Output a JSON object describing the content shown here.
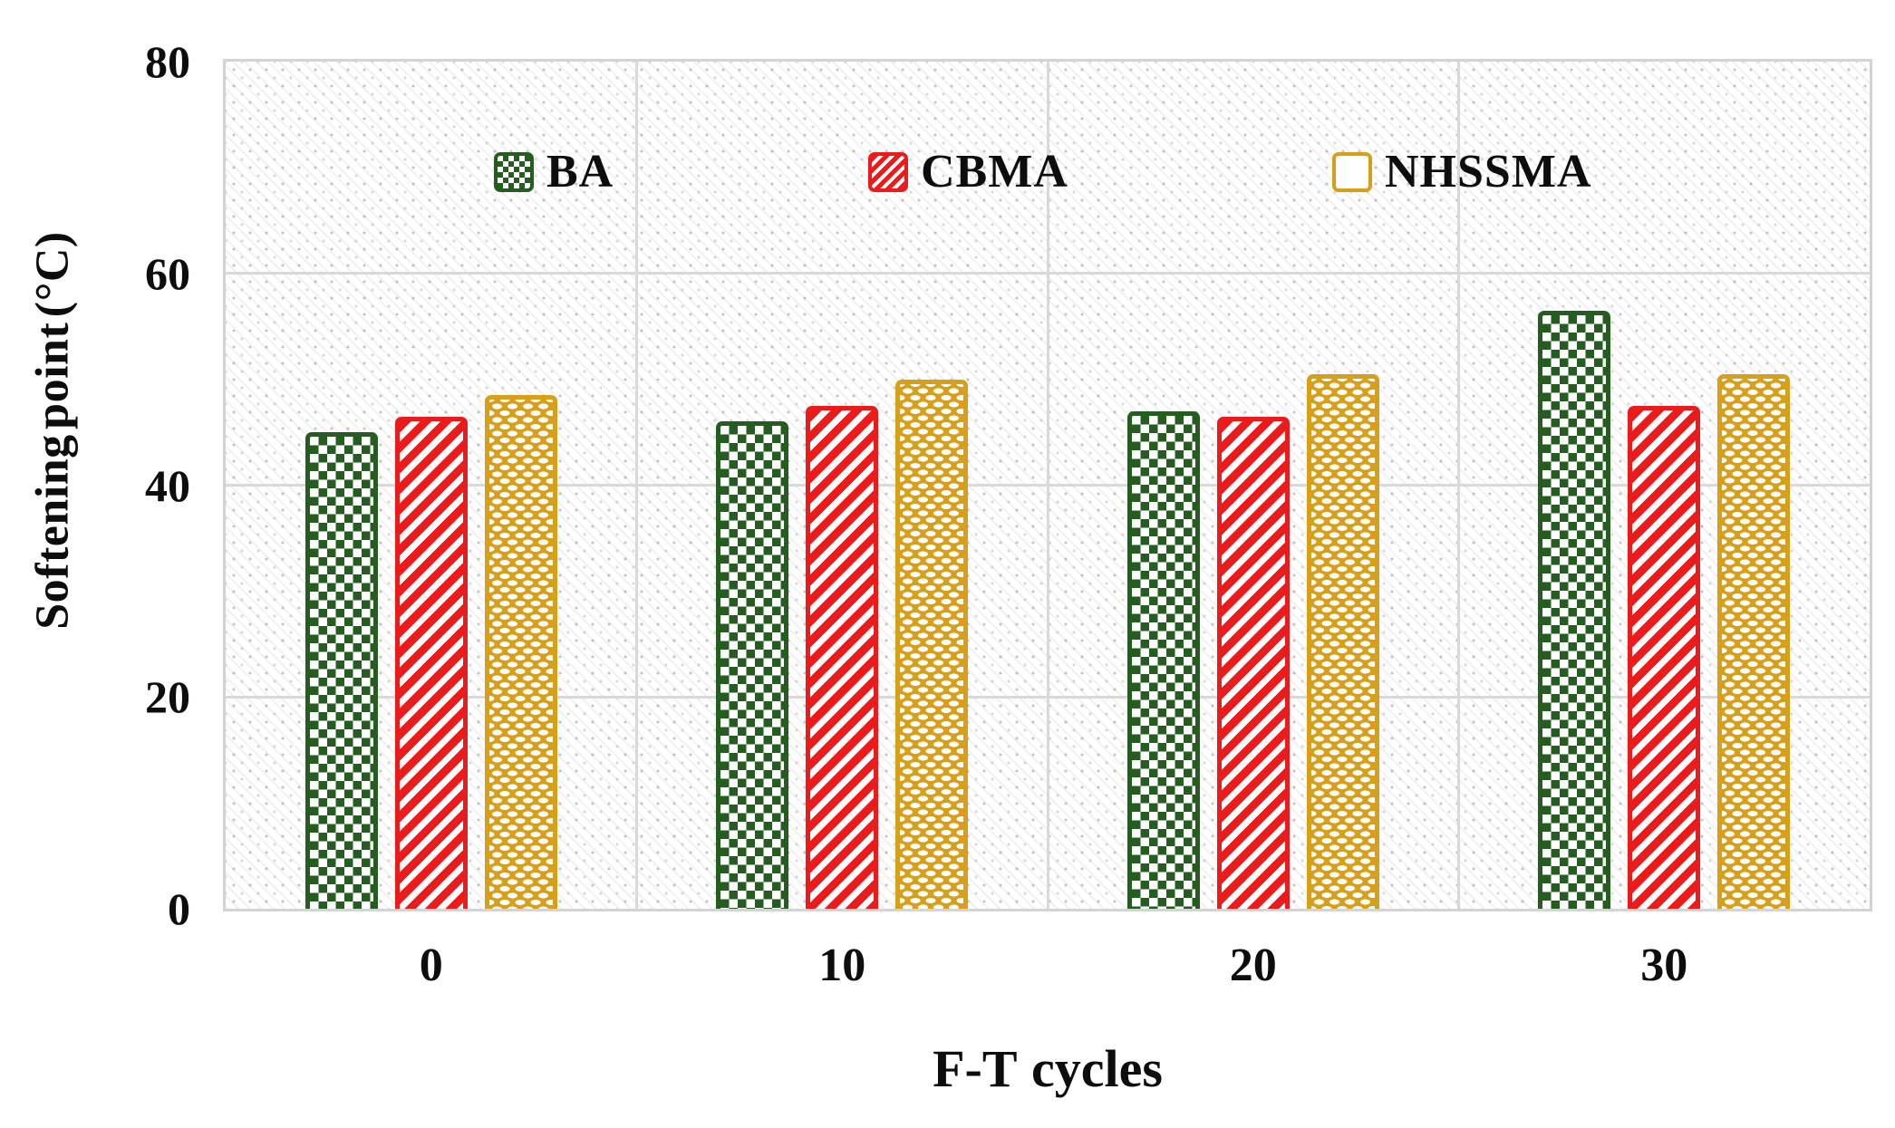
{
  "chart_data": {
    "type": "bar",
    "title": "",
    "xlabel": "F-T cycles",
    "ylabel": "Softening point (°C)",
    "categories": [
      "0",
      "10",
      "20",
      "30"
    ],
    "series": [
      {
        "name": "BA",
        "color": "#255C20",
        "pattern": "checker",
        "values": [
          45.0,
          46.0,
          47.0,
          56.5
        ]
      },
      {
        "name": "CBMA",
        "color": "#EC1B1B",
        "pattern": "diagonal-stripes",
        "values": [
          46.5,
          47.5,
          46.5,
          47.5
        ]
      },
      {
        "name": "NHSSMA",
        "color": "#D8A01A",
        "pattern": "offset-dashes",
        "values": [
          48.5,
          50.0,
          50.5,
          50.5
        ]
      }
    ],
    "ylim": [
      0,
      80
    ],
    "yticks": [
      0,
      20,
      40,
      60,
      80
    ],
    "grid": true,
    "legend_position": "top-inside",
    "plot_background": "light diagonal hatch",
    "gridline_color": "#D9D9D9",
    "text_color": "#0D0D0D"
  }
}
